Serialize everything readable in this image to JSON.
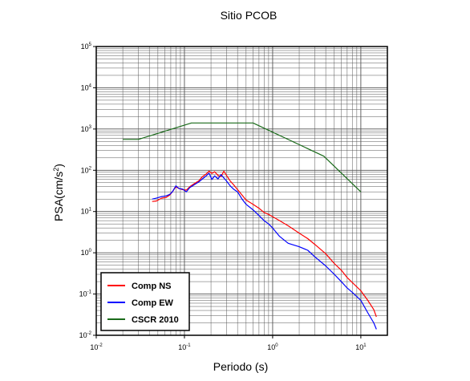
{
  "chart_data": {
    "type": "line",
    "title": "Sitio PCOB",
    "xlabel": "Periodo (s)",
    "ylabel": {
      "base": "PSA(cm/s",
      "sup": "2",
      "tail": ")"
    },
    "xscale": "log",
    "yscale": "log",
    "xlim": [
      0.01,
      20
    ],
    "ylim": [
      0.01,
      100000
    ],
    "grid": true,
    "legend_position": "bottom-left",
    "x_ticks": [
      {
        "base": "10",
        "exp": "-2",
        "value": 0.01
      },
      {
        "base": "10",
        "exp": "-1",
        "value": 0.1
      },
      {
        "base": "10",
        "exp": "0",
        "value": 1
      },
      {
        "base": "10",
        "exp": "1",
        "value": 10
      }
    ],
    "y_ticks": [
      {
        "base": "10",
        "exp": "-2",
        "value": 0.01
      },
      {
        "base": "10",
        "exp": "-1",
        "value": 0.1
      },
      {
        "base": "10",
        "exp": "0",
        "value": 1
      },
      {
        "base": "10",
        "exp": "1",
        "value": 10
      },
      {
        "base": "10",
        "exp": "2",
        "value": 100
      },
      {
        "base": "10",
        "exp": "3",
        "value": 1000
      },
      {
        "base": "10",
        "exp": "4",
        "value": 10000
      },
      {
        "base": "10",
        "exp": "5",
        "value": 100000
      }
    ],
    "series": [
      {
        "name": "Comp NS",
        "color": "#ff0000",
        "points": [
          [
            0.043,
            17.5
          ],
          [
            0.048,
            18
          ],
          [
            0.055,
            21
          ],
          [
            0.062,
            22
          ],
          [
            0.068,
            25
          ],
          [
            0.073,
            30
          ],
          [
            0.08,
            40
          ],
          [
            0.087,
            36
          ],
          [
            0.095,
            34
          ],
          [
            0.105,
            33
          ],
          [
            0.115,
            40
          ],
          [
            0.13,
            48
          ],
          [
            0.145,
            55
          ],
          [
            0.16,
            70
          ],
          [
            0.175,
            80
          ],
          [
            0.19,
            95
          ],
          [
            0.205,
            84
          ],
          [
            0.22,
            92
          ],
          [
            0.24,
            75
          ],
          [
            0.26,
            70
          ],
          [
            0.28,
            95
          ],
          [
            0.3,
            75
          ],
          [
            0.33,
            55
          ],
          [
            0.36,
            45
          ],
          [
            0.4,
            34
          ],
          [
            0.45,
            25
          ],
          [
            0.5,
            19
          ],
          [
            0.6,
            15
          ],
          [
            0.7,
            12
          ],
          [
            0.8,
            9.5
          ],
          [
            0.9,
            8.5
          ],
          [
            1.0,
            7.5
          ],
          [
            1.2,
            6
          ],
          [
            1.5,
            4.5
          ],
          [
            2.0,
            3
          ],
          [
            2.5,
            2.2
          ],
          [
            3.0,
            1.6
          ],
          [
            4.0,
            0.95
          ],
          [
            5.0,
            0.55
          ],
          [
            6.0,
            0.38
          ],
          [
            7.0,
            0.25
          ],
          [
            8.0,
            0.19
          ],
          [
            10.0,
            0.12
          ],
          [
            12.0,
            0.07
          ],
          [
            14.0,
            0.042
          ],
          [
            15.0,
            0.028
          ]
        ]
      },
      {
        "name": "Comp EW",
        "color": "#0000ff",
        "points": [
          [
            0.043,
            20
          ],
          [
            0.048,
            21
          ],
          [
            0.055,
            23
          ],
          [
            0.062,
            24
          ],
          [
            0.068,
            26
          ],
          [
            0.073,
            30
          ],
          [
            0.08,
            42
          ],
          [
            0.087,
            36
          ],
          [
            0.095,
            35
          ],
          [
            0.105,
            30
          ],
          [
            0.115,
            38
          ],
          [
            0.13,
            45
          ],
          [
            0.145,
            52
          ],
          [
            0.16,
            62
          ],
          [
            0.175,
            72
          ],
          [
            0.19,
            85
          ],
          [
            0.205,
            60
          ],
          [
            0.22,
            73
          ],
          [
            0.24,
            62
          ],
          [
            0.26,
            78
          ],
          [
            0.28,
            65
          ],
          [
            0.3,
            55
          ],
          [
            0.33,
            42
          ],
          [
            0.36,
            35
          ],
          [
            0.4,
            30
          ],
          [
            0.45,
            20
          ],
          [
            0.5,
            15
          ],
          [
            0.6,
            11
          ],
          [
            0.7,
            8
          ],
          [
            0.8,
            6
          ],
          [
            0.9,
            5
          ],
          [
            1.0,
            4
          ],
          [
            1.2,
            2.5
          ],
          [
            1.5,
            1.7
          ],
          [
            2.0,
            1.4
          ],
          [
            2.5,
            1.15
          ],
          [
            3.0,
            0.8
          ],
          [
            4.0,
            0.48
          ],
          [
            5.0,
            0.3
          ],
          [
            6.0,
            0.2
          ],
          [
            7.0,
            0.14
          ],
          [
            8.0,
            0.11
          ],
          [
            10.0,
            0.07
          ],
          [
            12.0,
            0.035
          ],
          [
            14.0,
            0.02
          ],
          [
            15.0,
            0.014
          ]
        ]
      },
      {
        "name": "CSCR 2010",
        "color": "#1a6b1a",
        "points": [
          [
            0.02,
            560
          ],
          [
            0.03,
            560
          ],
          [
            0.12,
            1400
          ],
          [
            0.6,
            1400
          ],
          [
            3.8,
            220
          ],
          [
            10.0,
            30
          ]
        ]
      }
    ]
  }
}
